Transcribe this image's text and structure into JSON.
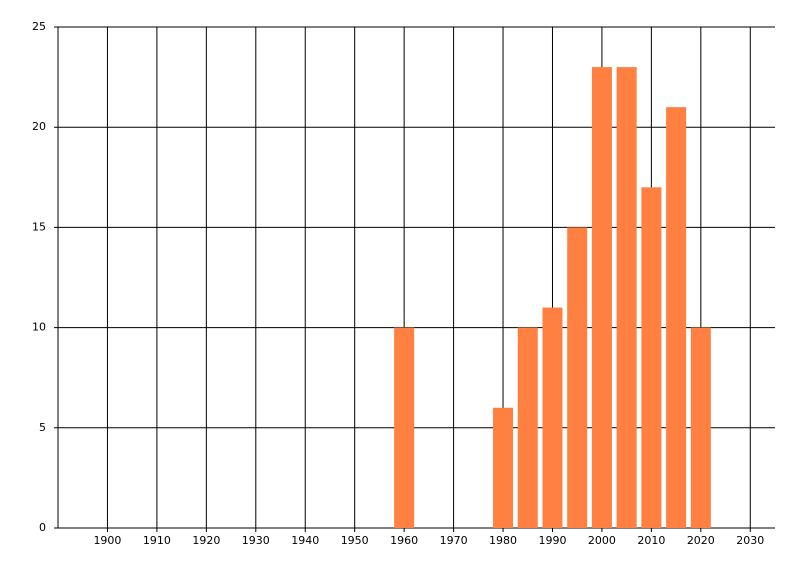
{
  "chart_data": {
    "type": "bar",
    "x": [
      1960,
      1980,
      1985,
      1990,
      1995,
      2000,
      2005,
      2010,
      2015,
      2020
    ],
    "values": [
      10,
      6,
      10,
      11,
      15,
      23,
      23,
      17,
      21,
      10
    ],
    "color": "#ff8040",
    "xlim": [
      1890,
      2035
    ],
    "xticks": [
      1900,
      1910,
      1920,
      1930,
      1940,
      1950,
      1960,
      1970,
      1980,
      1990,
      2000,
      2010,
      2020,
      2030
    ],
    "ylim": [
      0,
      25
    ],
    "yticks": [
      0,
      5,
      10,
      15,
      20,
      25
    ],
    "grid": true
  }
}
